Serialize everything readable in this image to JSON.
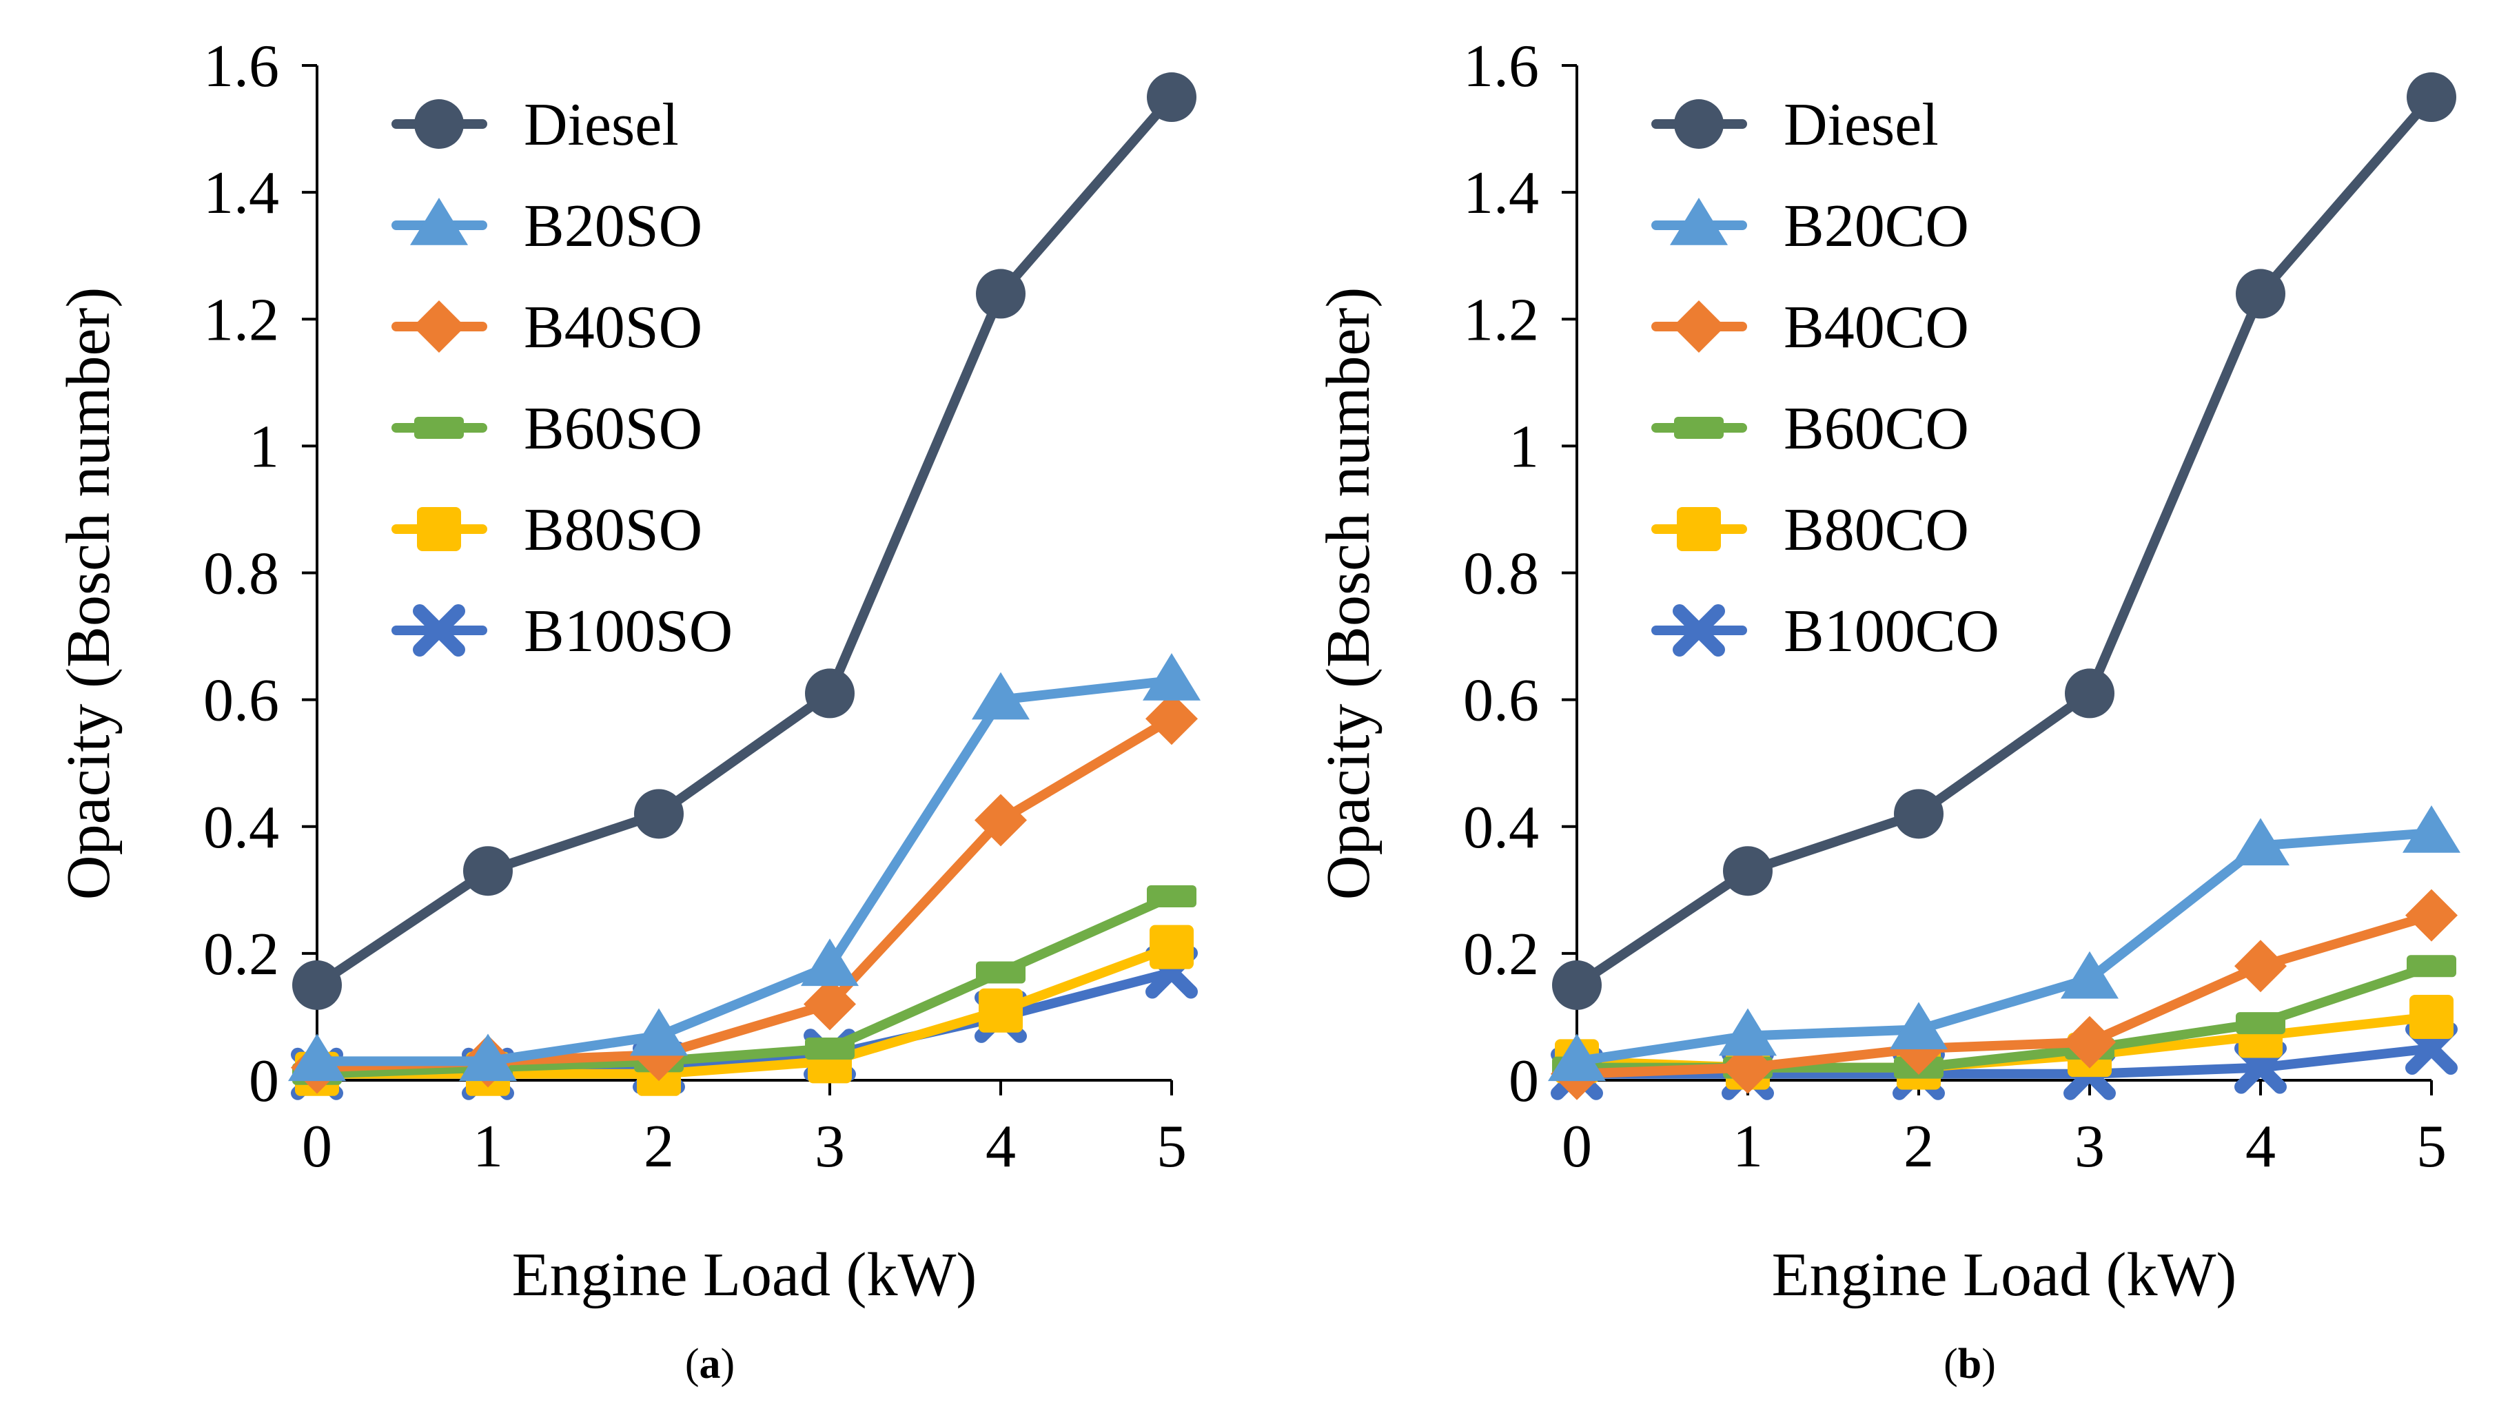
{
  "colors": {
    "Diesel": "#44546A",
    "B20": "#5B9BD5",
    "B40": "#ED7D31",
    "B60": "#70AD47",
    "B80": "#FFC000",
    "B100": "#4472C4"
  },
  "chart_data": [
    {
      "type": "line",
      "panel_label": "a",
      "xlabel": "Engine Load (kW)",
      "ylabel": "Opacity (Bosch number)",
      "x": [
        0,
        1,
        2,
        3,
        4,
        5
      ],
      "xlim": [
        0,
        5
      ],
      "ylim": [
        0,
        1.6
      ],
      "yticks": [
        "0",
        "0.2",
        "0.4",
        "0.6",
        "0.8",
        "1",
        "1.2",
        "1.4",
        "1.6"
      ],
      "xticks": [
        "0",
        "1",
        "2",
        "3",
        "4",
        "5"
      ],
      "grid": false,
      "legend_position": "top-left",
      "series": [
        {
          "name": "Diesel",
          "color_key": "Diesel",
          "marker": "circle",
          "values": [
            0.15,
            0.33,
            0.42,
            0.61,
            1.24,
            1.55
          ]
        },
        {
          "name": "B20SO",
          "color_key": "B20",
          "marker": "triangle",
          "values": [
            0.03,
            0.03,
            0.07,
            0.18,
            0.6,
            0.63
          ]
        },
        {
          "name": "B40SO",
          "color_key": "B40",
          "marker": "diamond",
          "values": [
            0.02,
            0.03,
            0.04,
            0.12,
            0.41,
            0.57
          ]
        },
        {
          "name": "B60SO",
          "color_key": "B60",
          "marker": "dash",
          "values": [
            0.01,
            0.02,
            0.03,
            0.05,
            0.17,
            0.29
          ]
        },
        {
          "name": "B80SO",
          "color_key": "B80",
          "marker": "square",
          "values": [
            0.01,
            0.01,
            0.01,
            0.03,
            0.11,
            0.21
          ]
        },
        {
          "name": "B100SO",
          "color_key": "B100",
          "marker": "x",
          "values": [
            0.01,
            0.01,
            0.02,
            0.04,
            0.1,
            0.17
          ]
        }
      ]
    },
    {
      "type": "line",
      "panel_label": "b",
      "xlabel": "Engine Load (kW)",
      "ylabel": "Opacity (Bosch number)",
      "x": [
        0,
        1,
        2,
        3,
        4,
        5
      ],
      "xlim": [
        0,
        5
      ],
      "ylim": [
        0,
        1.6
      ],
      "yticks": [
        "0",
        "0.2",
        "0.4",
        "0.6",
        "0.8",
        "1",
        "1.2",
        "1.4",
        "1.6"
      ],
      "xticks": [
        "0",
        "1",
        "2",
        "3",
        "4",
        "5"
      ],
      "grid": false,
      "legend_position": "top-left",
      "series": [
        {
          "name": "Diesel",
          "color_key": "Diesel",
          "marker": "circle",
          "values": [
            0.15,
            0.33,
            0.42,
            0.61,
            1.24,
            1.55
          ]
        },
        {
          "name": "B20CO",
          "color_key": "B20",
          "marker": "triangle",
          "values": [
            0.03,
            0.07,
            0.08,
            0.16,
            0.37,
            0.39
          ]
        },
        {
          "name": "B40CO",
          "color_key": "B40",
          "marker": "diamond",
          "values": [
            0.01,
            0.02,
            0.05,
            0.06,
            0.18,
            0.26
          ]
        },
        {
          "name": "B60CO",
          "color_key": "B60",
          "marker": "dash",
          "values": [
            0.02,
            0.02,
            0.02,
            0.05,
            0.09,
            0.18
          ]
        },
        {
          "name": "B80CO",
          "color_key": "B80",
          "marker": "square",
          "values": [
            0.03,
            0.02,
            0.02,
            0.04,
            0.07,
            0.1
          ]
        },
        {
          "name": "B100CO",
          "color_key": "B100",
          "marker": "x",
          "values": [
            0.01,
            0.01,
            0.01,
            0.01,
            0.02,
            0.05
          ]
        }
      ]
    }
  ]
}
